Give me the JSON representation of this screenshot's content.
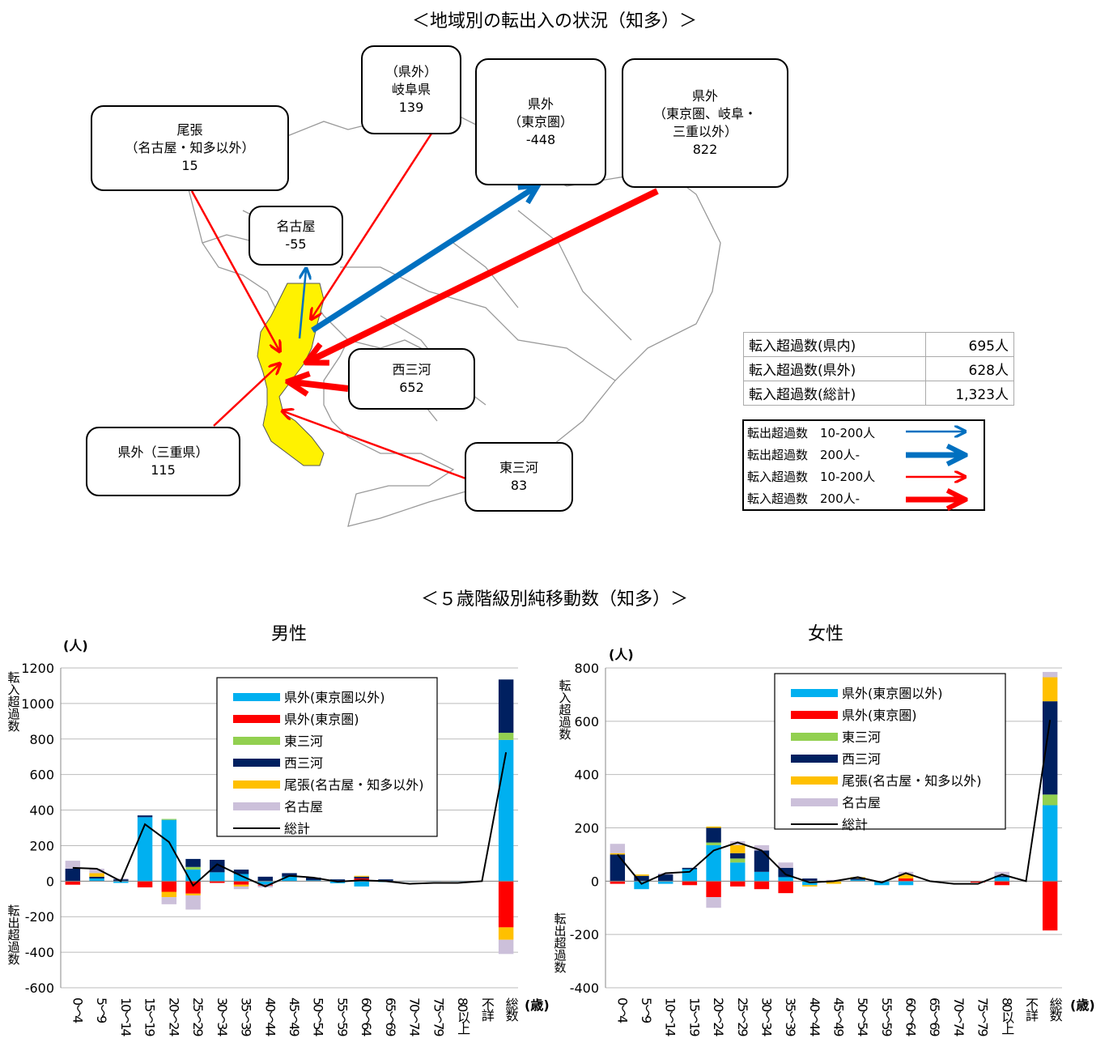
{
  "map": {
    "title": "＜地域別の転出入の状況（知多）＞",
    "boxes": [
      {
        "id": "owari",
        "lines": [
          "尾張",
          "（名古屋・知多以外）",
          "15"
        ]
      },
      {
        "id": "gifu",
        "lines": [
          "（県外）",
          "岐阜県",
          "139"
        ]
      },
      {
        "id": "tokyo",
        "lines": [
          "県外",
          "（東京圏）",
          "-448"
        ]
      },
      {
        "id": "other",
        "lines": [
          "県外",
          "（東京圏、岐阜・",
          "三重以外）",
          "822"
        ]
      },
      {
        "id": "nagoya",
        "lines": [
          "名古屋",
          "-55"
        ]
      },
      {
        "id": "nishi",
        "lines": [
          "西三河",
          "652"
        ]
      },
      {
        "id": "mie",
        "lines": [
          "県外（三重県）",
          "115"
        ]
      },
      {
        "id": "higashi",
        "lines": [
          "東三河",
          "83"
        ]
      }
    ],
    "summary": [
      {
        "label": "転入超過数(県内)",
        "value": "695人"
      },
      {
        "label": "転入超過数(県外)",
        "value": "628人"
      },
      {
        "label": "転入超過数(総計)",
        "value": "1,323人"
      }
    ],
    "arrow_legend": [
      {
        "label": "転出超過数　10-200人",
        "color": "#0070C0",
        "thick": false
      },
      {
        "label": "転出超過数　200人-",
        "color": "#0070C0",
        "thick": true
      },
      {
        "label": "転入超過数　10-200人",
        "color": "#FF0000",
        "thick": false
      },
      {
        "label": "転入超過数　200人-",
        "color": "#FF0000",
        "thick": true
      }
    ],
    "colors": {
      "region_fill": "#FFF200",
      "inflow": "#FF0000",
      "outflow": "#0070C0"
    }
  },
  "charts_title": "＜５歳階級別純移動数（知多）＞",
  "labels": {
    "unit_y": "(人)",
    "unit_x": "(歳)",
    "inflow_axis": "転入超過数",
    "outflow_axis": "転出超過数"
  },
  "chart_data": [
    {
      "type": "bar",
      "stacked": true,
      "title": "男性",
      "ylim": [
        -600,
        1200
      ],
      "yticks": [
        -600,
        -400,
        -200,
        0,
        200,
        400,
        600,
        800,
        1000,
        1200
      ],
      "ytick_labels": [
        "-600",
        "-400",
        "-200",
        "0",
        "200",
        "400",
        "600",
        "800",
        "1000",
        "1200"
      ],
      "categories": [
        "0～4",
        "5～9",
        "10～14",
        "15～19",
        "20～24",
        "25～29",
        "30～34",
        "35～39",
        "40～44",
        "45～49",
        "50～54",
        "55～59",
        "60～64",
        "65～69",
        "70～74",
        "75～79",
        "80以上",
        "不詳",
        "総数"
      ],
      "series": [
        {
          "name": "県外(東京圏以外)",
          "color": "#00B0F0",
          "values": [
            0,
            15,
            -10,
            360,
            345,
            65,
            50,
            40,
            -20,
            25,
            5,
            -12,
            -30,
            -5,
            -2,
            -2,
            -3,
            0,
            795
          ]
        },
        {
          "name": "県外(東京圏)",
          "color": "#FF0000",
          "values": [
            -20,
            0,
            0,
            -35,
            -60,
            -70,
            -10,
            -20,
            -5,
            0,
            0,
            0,
            15,
            0,
            0,
            0,
            0,
            0,
            -260
          ]
        },
        {
          "name": "東三河",
          "color": "#92D050",
          "values": [
            0,
            0,
            0,
            0,
            5,
            15,
            0,
            0,
            0,
            0,
            0,
            0,
            0,
            0,
            0,
            0,
            0,
            0,
            40
          ]
        },
        {
          "name": "西三河",
          "color": "#002060",
          "values": [
            70,
            10,
            10,
            10,
            0,
            45,
            70,
            25,
            25,
            20,
            15,
            10,
            10,
            10,
            0,
            0,
            0,
            0,
            300
          ]
        },
        {
          "name": "尾張(名古屋・知多以外)",
          "color": "#FFC000",
          "values": [
            0,
            20,
            0,
            0,
            -30,
            -10,
            0,
            -10,
            0,
            0,
            0,
            0,
            5,
            0,
            0,
            0,
            0,
            0,
            -70
          ]
        },
        {
          "name": "名古屋",
          "color": "#CCC0DA",
          "values": [
            45,
            25,
            5,
            0,
            -40,
            -80,
            0,
            -15,
            -10,
            0,
            0,
            0,
            0,
            0,
            0,
            0,
            0,
            0,
            -80
          ]
        }
      ],
      "total": {
        "name": "総計",
        "color": "#000000",
        "values": [
          75,
          70,
          0,
          320,
          220,
          -25,
          95,
          30,
          -30,
          30,
          20,
          -3,
          5,
          0,
          -15,
          -10,
          -10,
          0,
          725
        ]
      }
    },
    {
      "type": "bar",
      "stacked": true,
      "title": "女性",
      "ylim": [
        -400,
        800
      ],
      "yticks": [
        -400,
        -200,
        0,
        200,
        400,
        600,
        800
      ],
      "ytick_labels": [
        "-400",
        "-200",
        "0",
        "200",
        "400",
        "600",
        "800"
      ],
      "categories": [
        "0～4",
        "5～9",
        "10～14",
        "15～19",
        "20～24",
        "25～29",
        "30～34",
        "35～39",
        "40～44",
        "45～49",
        "50～54",
        "55～59",
        "60～64",
        "65～69",
        "70～74",
        "75～79",
        "80以上",
        "不詳",
        "総数"
      ],
      "series": [
        {
          "name": "県外(東京圏以外)",
          "color": "#00B0F0",
          "values": [
            0,
            -30,
            -10,
            45,
            135,
            70,
            35,
            15,
            -15,
            0,
            5,
            -15,
            -15,
            0,
            0,
            0,
            15,
            0,
            285
          ]
        },
        {
          "name": "県外(東京圏)",
          "color": "#FF0000",
          "values": [
            -10,
            0,
            0,
            -15,
            -60,
            -20,
            -30,
            -45,
            0,
            0,
            0,
            0,
            10,
            0,
            0,
            -5,
            -15,
            0,
            -185
          ]
        },
        {
          "name": "東三河",
          "color": "#92D050",
          "values": [
            0,
            0,
            0,
            0,
            10,
            15,
            0,
            0,
            0,
            0,
            0,
            0,
            0,
            0,
            0,
            0,
            0,
            0,
            40
          ]
        },
        {
          "name": "西三河",
          "color": "#002060",
          "values": [
            100,
            20,
            25,
            5,
            55,
            20,
            80,
            35,
            10,
            0,
            5,
            0,
            0,
            0,
            0,
            0,
            5,
            0,
            350
          ]
        },
        {
          "name": "尾張(名古屋・知多以外)",
          "color": "#FFC000",
          "values": [
            5,
            5,
            0,
            0,
            5,
            30,
            0,
            0,
            -5,
            -10,
            5,
            0,
            15,
            0,
            0,
            0,
            0,
            0,
            90
          ]
        },
        {
          "name": "名古屋",
          "color": "#CCC0DA",
          "values": [
            35,
            0,
            5,
            0,
            -40,
            15,
            20,
            20,
            0,
            5,
            0,
            0,
            10,
            0,
            0,
            0,
            15,
            0,
            20
          ]
        }
      ],
      "total": {
        "name": "総計",
        "color": "#000000",
        "values": [
          100,
          -10,
          30,
          35,
          115,
          145,
          115,
          25,
          -5,
          0,
          15,
          -5,
          30,
          0,
          -10,
          -10,
          25,
          0,
          605
        ]
      }
    }
  ]
}
